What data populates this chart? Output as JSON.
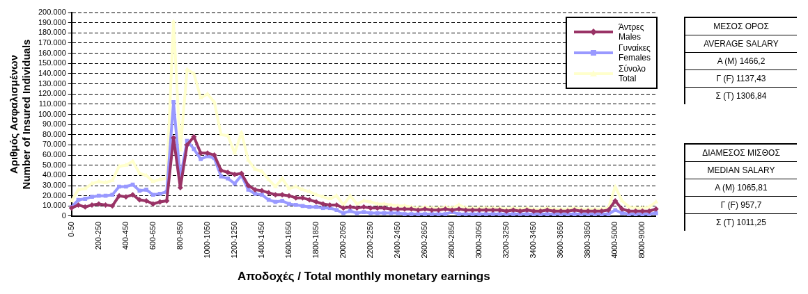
{
  "chart_data": {
    "type": "line",
    "xlabel": "Αποδοχές / Total monthly monetary earnings",
    "ylabel": "Αριθμός Ασφαλισμένων\nNumber of Insured Individuals",
    "categories": [
      "0-50",
      null,
      null,
      null,
      "200-250",
      null,
      null,
      null,
      "400-450",
      null,
      null,
      null,
      "600-650",
      null,
      null,
      null,
      "800-850",
      null,
      null,
      null,
      "1000-1050",
      null,
      null,
      null,
      "1200-1250",
      null,
      null,
      null,
      "1400-1450",
      null,
      null,
      null,
      "1600-1650",
      null,
      null,
      null,
      "1800-1850",
      null,
      null,
      null,
      "2000-2050",
      null,
      null,
      null,
      "2200-2250",
      null,
      null,
      null,
      "2400-2450",
      null,
      null,
      null,
      "2600-2650",
      null,
      null,
      null,
      "2800-2850",
      null,
      null,
      null,
      "3000-3050",
      null,
      null,
      null,
      "3200-3250",
      null,
      null,
      null,
      "3400-3450",
      null,
      null,
      null,
      "3600-3650",
      null,
      null,
      null,
      "3800-3850",
      null,
      null,
      null,
      "4000-5000",
      null,
      null,
      null,
      "8000-9000",
      null,
      null
    ],
    "series": [
      {
        "name": "Άντρες\nMales",
        "color": "#993366",
        "marker": "diamond",
        "values": [
          8000,
          11000,
          9000,
          11000,
          12000,
          11000,
          10000,
          20000,
          19000,
          21000,
          16000,
          15000,
          12000,
          14000,
          15000,
          77000,
          28000,
          70000,
          78000,
          62000,
          62000,
          60000,
          45000,
          43000,
          41000,
          42000,
          30000,
          26000,
          25000,
          23000,
          21000,
          21000,
          20000,
          18000,
          18000,
          16000,
          14000,
          12000,
          11000,
          11000,
          8000,
          9000,
          8000,
          9000,
          8000,
          8000,
          8000,
          7000,
          7000,
          7000,
          7000,
          6000,
          7000,
          6000,
          6000,
          7000,
          6000,
          7000,
          6000,
          6000,
          6000,
          6000,
          6000,
          6000,
          5000,
          6000,
          5000,
          6000,
          5000,
          5000,
          6000,
          5000,
          5000,
          5000,
          6000,
          5000,
          5000,
          5000,
          5000,
          6000,
          15000,
          7000,
          5000,
          5000,
          5000,
          5000,
          7000
        ]
      },
      {
        "name": "Γυναίκες\nFemales",
        "color": "#9999ff",
        "marker": "square",
        "values": [
          9000,
          16000,
          17000,
          19000,
          20000,
          20000,
          21000,
          29000,
          29000,
          31000,
          25000,
          26000,
          21000,
          22000,
          24000,
          112000,
          37000,
          74000,
          66000,
          56000,
          59000,
          57000,
          39000,
          37000,
          32000,
          40000,
          26000,
          22000,
          21000,
          16000,
          14000,
          15000,
          12000,
          11000,
          10000,
          9000,
          9000,
          8000,
          8000,
          6000,
          3000,
          5000,
          3000,
          4000,
          3000,
          3000,
          3000,
          3000,
          3000,
          2000,
          2000,
          2000,
          2000,
          2000,
          2000,
          2000,
          4000,
          2000,
          2000,
          2000,
          2000,
          2000,
          2000,
          2000,
          2000,
          2000,
          2000,
          2000,
          2000,
          2000,
          2000,
          2000,
          2000,
          2000,
          2000,
          2000,
          2000,
          2000,
          2000,
          2000,
          6000,
          3000,
          2000,
          2000,
          2000,
          2000,
          3000
        ]
      },
      {
        "name": "Σύνολο\nTotal",
        "color": "#ffffcc",
        "marker": "triangle",
        "values": [
          15000,
          26000,
          27000,
          32000,
          34000,
          33000,
          35000,
          49000,
          50000,
          54000,
          42000,
          40000,
          34000,
          36000,
          37000,
          191000,
          65000,
          144000,
          140000,
          116000,
          120000,
          112000,
          80000,
          79000,
          62000,
          82000,
          55000,
          46000,
          44000,
          36000,
          29000,
          37000,
          27000,
          29000,
          26000,
          24000,
          21000,
          19000,
          17000,
          20000,
          11000,
          20000,
          12000,
          15000,
          14000,
          12000,
          12000,
          11000,
          10000,
          10000,
          9000,
          8000,
          9000,
          8000,
          8000,
          9000,
          8000,
          11000,
          8000,
          8000,
          8000,
          8000,
          8000,
          8000,
          7000,
          8000,
          7000,
          8000,
          7000,
          7000,
          8000,
          7000,
          7000,
          7000,
          8000,
          7000,
          7000,
          7000,
          7000,
          8000,
          29000,
          15000,
          9000,
          8000,
          8000,
          9000,
          14000
        ]
      }
    ],
    "ylim": [
      0,
      200000
    ],
    "yticks": [
      0,
      {
        "value": 10000,
        "label": "10.000"
      },
      {
        "value": 20000,
        "label": "20.000"
      },
      {
        "value": 30000,
        "label": "30.000"
      },
      {
        "value": 40000,
        "label": "40.000"
      },
      {
        "value": 50000,
        "label": "50.000"
      },
      {
        "value": 60000,
        "label": "60.000"
      },
      {
        "value": 70000,
        "label": "70.000"
      },
      {
        "value": 80000,
        "label": "80.000"
      },
      {
        "value": 90000,
        "label": "90.000"
      },
      {
        "value": 100000,
        "label": "100.000"
      },
      {
        "value": 110000,
        "label": "110.000"
      },
      {
        "value": 120000,
        "label": "120.000"
      },
      {
        "value": 130000,
        "label": "130.000"
      },
      {
        "value": 140000,
        "label": "140.000"
      },
      {
        "value": 150000,
        "label": "150.000"
      },
      {
        "value": 160000,
        "label": "160.000"
      },
      {
        "value": 170000,
        "label": "170.000"
      },
      {
        "value": 180000,
        "label": "180.000"
      },
      {
        "value": 190000,
        "label": "190.000"
      },
      {
        "value": 200000,
        "label": "200.000"
      }
    ],
    "grid": "y",
    "legend": "top right",
    "line_style": "solid",
    "annotations": [
      "ΜΕΣΟΣ ΟΡΟΣ",
      "AVERAGE SALARY",
      "Α (Μ) 1466,2",
      "Γ (F) 1137,43",
      "Σ (Τ) 1306,84",
      "ΔΙΑΜΕΣΟΣ ΜΙΣΘΟΣ",
      "MEDIAN SALARY",
      "Α (Μ) 1065,81",
      "Γ (F) 957,7",
      "Σ (Τ) 1011,25"
    ]
  }
}
